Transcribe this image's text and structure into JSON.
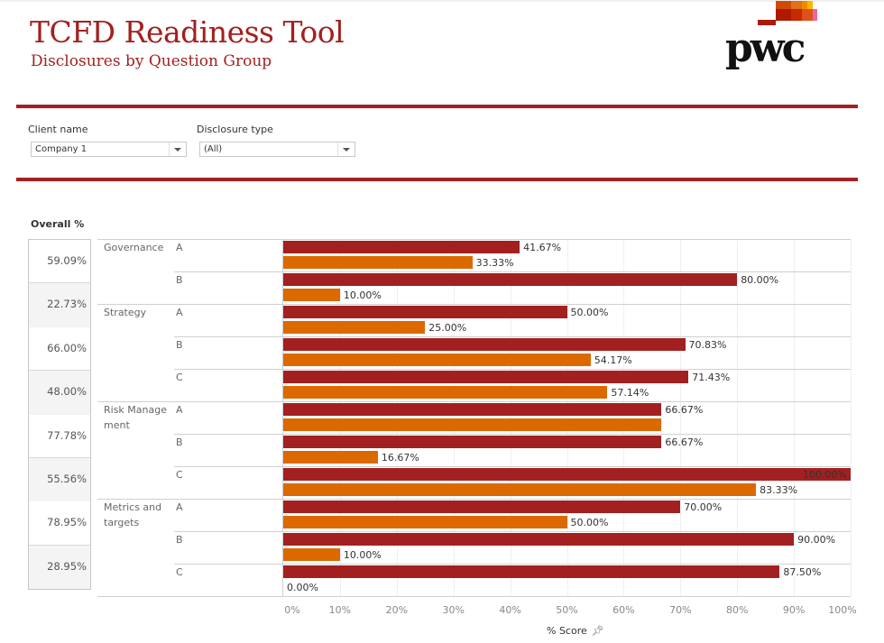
{
  "header": {
    "title": "TCFD Readiness Tool",
    "subtitle": "Disclosures by Question Group",
    "logo_text": "pwc"
  },
  "filters": {
    "client_label": "Client name",
    "client_value": "Company 1",
    "type_label": "Disclosure type",
    "type_value": "(All)"
  },
  "overall": {
    "title": "Overall %",
    "values": [
      "59.09%",
      "22.73%",
      "66.00%",
      "48.00%",
      "77.78%",
      "55.56%",
      "78.95%",
      "28.95%"
    ]
  },
  "colors": {
    "brand": "#a32020",
    "current": "#a32020",
    "prior": "#dc6900"
  },
  "chart_data": {
    "type": "bar",
    "orientation": "horizontal",
    "xlabel": "% Score",
    "xlim": [
      0,
      100
    ],
    "x_ticks": [
      "0%",
      "10%",
      "20%",
      "30%",
      "40%",
      "50%",
      "60%",
      "70%",
      "80%",
      "90%",
      "100%"
    ],
    "groups": [
      {
        "name": "Governance",
        "rows": [
          {
            "sub": "A",
            "series1": 41.67,
            "series1_label": "41.67%",
            "series2": 33.33,
            "series2_label": "33.33%"
          },
          {
            "sub": "B",
            "series1": 80.0,
            "series1_label": "80.00%",
            "series2": 10.0,
            "series2_label": "10.00%"
          }
        ]
      },
      {
        "name": "Strategy",
        "rows": [
          {
            "sub": "A",
            "series1": 50.0,
            "series1_label": "50.00%",
            "series2": 25.0,
            "series2_label": "25.00%"
          },
          {
            "sub": "B",
            "series1": 70.83,
            "series1_label": "70.83%",
            "series2": 54.17,
            "series2_label": "54.17%"
          },
          {
            "sub": "C",
            "series1": 71.43,
            "series1_label": "71.43%",
            "series2": 57.14,
            "series2_label": "57.14%"
          }
        ]
      },
      {
        "name": "Risk Manage\nment",
        "rows": [
          {
            "sub": "A",
            "series1": 66.67,
            "series1_label": "66.67%",
            "series2": 66.67,
            "series2_label": null
          },
          {
            "sub": "B",
            "series1": 66.67,
            "series1_label": "66.67%",
            "series2": 16.67,
            "series2_label": "16.67%"
          },
          {
            "sub": "C",
            "series1": 100.0,
            "series1_label": "100.00%",
            "series2": 83.33,
            "series2_label": "83.33%"
          }
        ]
      },
      {
        "name": "Metrics and\ntargets",
        "rows": [
          {
            "sub": "A",
            "series1": 70.0,
            "series1_label": "70.00%",
            "series2": 50.0,
            "series2_label": "50.00%"
          },
          {
            "sub": "B",
            "series1": 90.0,
            "series1_label": "90.00%",
            "series2": 10.0,
            "series2_label": "10.00%"
          },
          {
            "sub": "C",
            "series1": 87.5,
            "series1_label": "87.50%",
            "series2": 0.0,
            "series2_label": "0.00%"
          }
        ]
      }
    ]
  }
}
